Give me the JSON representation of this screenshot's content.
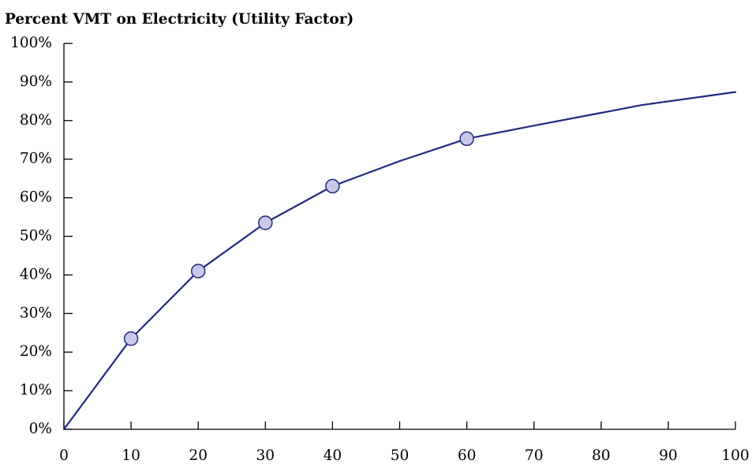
{
  "chart_data": {
    "type": "line",
    "title": "Percent VMT on Electricity (Utility Factor)",
    "xlabel": "",
    "ylabel": "",
    "xlim": [
      0,
      100
    ],
    "ylim": [
      0,
      100
    ],
    "x_ticks": [
      0,
      10,
      20,
      30,
      40,
      50,
      60,
      70,
      80,
      90,
      100
    ],
    "x_tick_labels": [
      "0",
      "10",
      "20",
      "30",
      "40",
      "50",
      "60",
      "70",
      "80",
      "90",
      "100"
    ],
    "y_ticks": [
      0,
      10,
      20,
      30,
      40,
      50,
      60,
      70,
      80,
      90,
      100
    ],
    "y_tick_labels": [
      "0%",
      "10%",
      "20%",
      "30%",
      "40%",
      "50%",
      "60%",
      "70%",
      "80%",
      "90%",
      "100%"
    ],
    "grid": false,
    "series": [
      {
        "x": [
          0,
          10,
          20,
          30,
          40,
          50,
          60,
          70,
          80,
          86,
          100
        ],
        "values": [
          0,
          23.5,
          41,
          53.5,
          63,
          69.5,
          75.3,
          78.7,
          82,
          84,
          87.4
        ]
      }
    ],
    "markers": {
      "x": [
        10,
        20,
        30,
        40,
        60
      ],
      "values": [
        23.5,
        41,
        53.5,
        63,
        75.3
      ]
    },
    "colors": {
      "line": "#1f2a80",
      "marker_fill": "#c8c8e8",
      "marker_stroke": "#1f2a80",
      "axis": "#000000"
    }
  }
}
